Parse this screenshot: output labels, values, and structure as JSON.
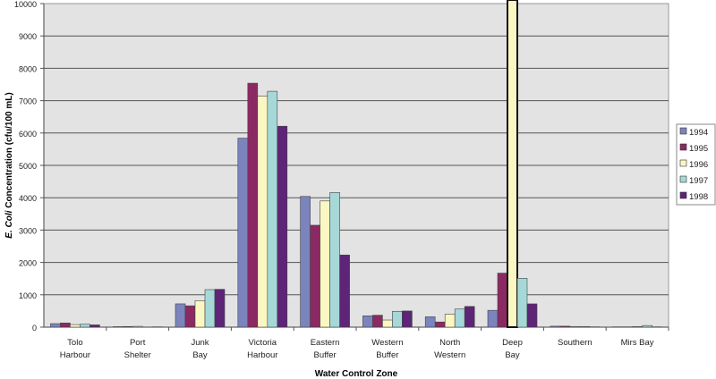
{
  "chart_data": {
    "type": "bar",
    "title": "",
    "xlabel": "Water Control Zone",
    "ylabel_italic": "E. Coli",
    "ylabel": "Concentration (cfu/100 mL)",
    "ylim": [
      0,
      10000
    ],
    "yticks": [
      "0",
      "1000",
      "2000",
      "3000",
      "4000",
      "5000",
      "6000",
      "7000",
      "8000",
      "9000",
      "10000"
    ],
    "ytick_values": [
      0,
      1000,
      2000,
      3000,
      4000,
      5000,
      6000,
      7000,
      8000,
      9000,
      10000
    ],
    "grid": true,
    "legend": "right",
    "categories": [
      [
        "Tolo",
        "Harbour"
      ],
      [
        "Port",
        "Shelter"
      ],
      [
        "Junk",
        "Bay"
      ],
      [
        "Victoria",
        "Harbour"
      ],
      [
        "Eastern",
        "Buffer"
      ],
      [
        "Western",
        "Buffer"
      ],
      [
        "North",
        "Western"
      ],
      [
        "Deep",
        "Bay"
      ],
      [
        "Southern",
        ""
      ],
      [
        "Mirs Bay",
        ""
      ]
    ],
    "series": [
      {
        "name": "1994",
        "color": "#7b84bd",
        "values": [
          110,
          15,
          720,
          5840,
          4040,
          350,
          320,
          520,
          30,
          10
        ]
      },
      {
        "name": "1995",
        "color": "#8b2a62",
        "values": [
          130,
          20,
          660,
          7540,
          3150,
          370,
          160,
          1670,
          30,
          10
        ]
      },
      {
        "name": "1996",
        "color": "#fbf7c2",
        "values": [
          80,
          25,
          820,
          7140,
          3900,
          220,
          400,
          10000,
          20,
          20
        ]
      },
      {
        "name": "1997",
        "color": "#a6d8d8",
        "values": [
          90,
          5,
          1160,
          7290,
          4160,
          490,
          560,
          1510,
          20,
          50
        ]
      },
      {
        "name": "1998",
        "color": "#5e2477",
        "values": [
          70,
          10,
          1170,
          6210,
          2230,
          500,
          640,
          720,
          10,
          10
        ]
      }
    ],
    "plot_background": "#e3e3e3"
  }
}
